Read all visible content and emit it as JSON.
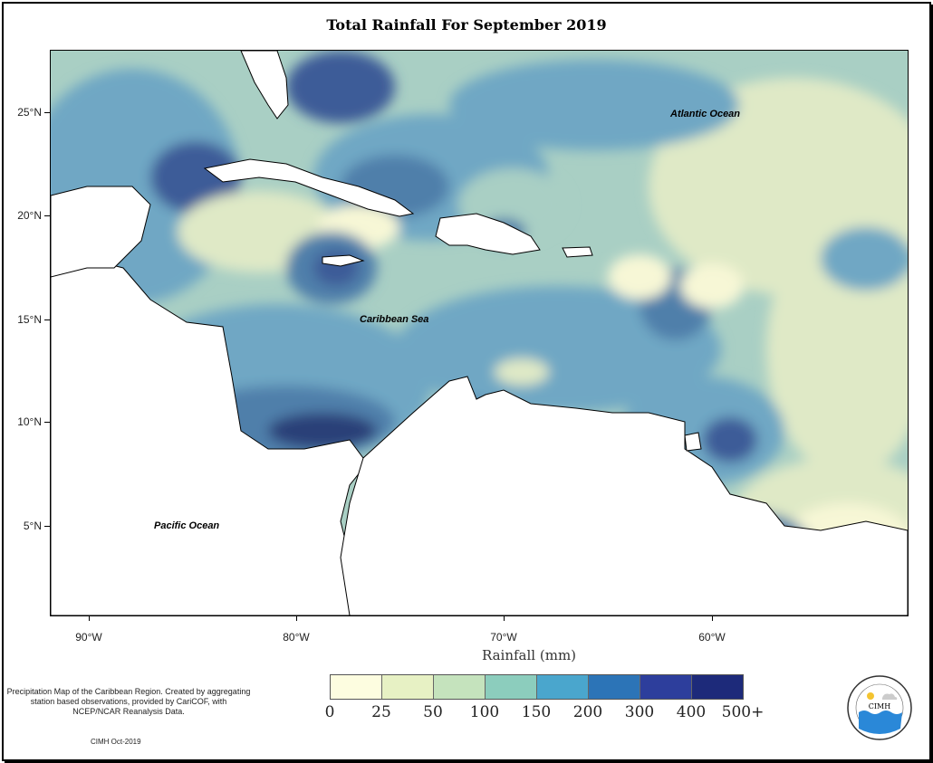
{
  "title": "Total Rainfall For September 2019",
  "axes": {
    "lat_ticks": [
      "25°N",
      "20°N",
      "15°N",
      "10°N",
      "5°N"
    ],
    "lon_ticks": [
      "90°W",
      "80°W",
      "70°W",
      "60°W"
    ],
    "xlabel": "Rainfall (mm)"
  },
  "labels": {
    "atlantic": "Atlantic Ocean",
    "caribbean": "Caribbean Sea",
    "pacific": "Pacific Ocean"
  },
  "legend": {
    "breaks": [
      "0",
      "25",
      "50",
      "100",
      "150",
      "200",
      "300",
      "400",
      "500+"
    ],
    "colors": [
      "#fdfde0",
      "#e7f1c4",
      "#c5e3bd",
      "#8ccdbd",
      "#4aa6cd",
      "#2c74b7",
      "#2d3e9c",
      "#1d2a7a",
      "#0a1a4d"
    ]
  },
  "map_palette": {
    "land": "#ffffff",
    "very_low": "#f7f7d6",
    "low": "#dfe9c6",
    "mid_low": "#a9cfc4",
    "mid": "#6fa7c4",
    "mid_high": "#4f7faa",
    "high": "#3e5c98",
    "very_high": "#2b3f78"
  },
  "footnote": "Precipitation Map of the Caribbean Region. Created by aggregating station based observations, provided by CariCOF, with NCEP/NCAR Reanalysis Data.",
  "credit": "CIMH Oct-2019",
  "logo": {
    "text": "CIMH",
    "ring_text": "Caribbean Institute for Meteorology and Hydrology"
  }
}
